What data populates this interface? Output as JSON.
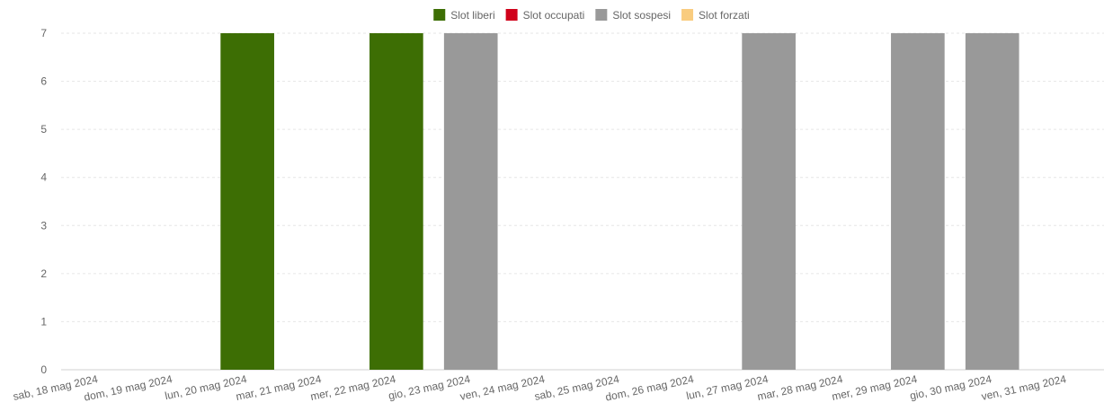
{
  "chart_data": {
    "type": "bar",
    "stacked": true,
    "categories": [
      "sab, 18 mag 2024",
      "dom, 19 mag 2024",
      "lun, 20 mag 2024",
      "mar, 21 mag 2024",
      "mer, 22 mag 2024",
      "gio, 23 mag 2024",
      "ven, 24 mag 2024",
      "sab, 25 mag 2024",
      "dom, 26 mag 2024",
      "lun, 27 mag 2024",
      "mar, 28 mag 2024",
      "mer, 29 mag 2024",
      "gio, 30 mag 2024",
      "ven, 31 mag 2024"
    ],
    "series": [
      {
        "name": "Slot liberi",
        "color": "#3d6e04",
        "values": [
          0,
          0,
          7,
          0,
          7,
          0,
          0,
          0,
          0,
          0,
          0,
          0,
          0,
          0
        ]
      },
      {
        "name": "Slot occupati",
        "color": "#d0021b",
        "values": [
          0,
          0,
          0,
          0,
          0,
          0,
          0,
          0,
          0,
          0,
          0,
          0,
          0,
          0
        ]
      },
      {
        "name": "Slot sospesi",
        "color": "#999999",
        "values": [
          0,
          0,
          0,
          0,
          0,
          7,
          0,
          0,
          0,
          7,
          0,
          7,
          7,
          0
        ]
      },
      {
        "name": "Slot forzati",
        "color": "#f9cc7f",
        "values": [
          0,
          0,
          0,
          0,
          0,
          0,
          0,
          0,
          0,
          0,
          0,
          0,
          0,
          0
        ]
      }
    ],
    "y_ticks": [
      "0",
      "1",
      "2",
      "3",
      "4",
      "5",
      "6",
      "7"
    ],
    "ylim": [
      0,
      7
    ],
    "legend_position": "top",
    "grid": true
  }
}
